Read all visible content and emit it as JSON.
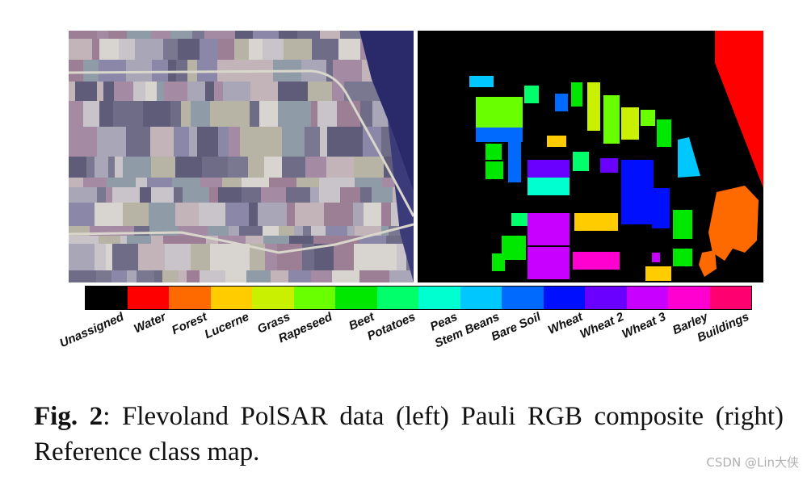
{
  "figure": {
    "left_panel_name": "Pauli RGB composite",
    "right_panel_name": "Reference class map"
  },
  "legend": {
    "classes": [
      {
        "name": "Unassigned",
        "color": "#000000"
      },
      {
        "name": "Water",
        "color": "#ff0000"
      },
      {
        "name": "Forest",
        "color": "#ff6a00"
      },
      {
        "name": "Lucerne",
        "color": "#ffcc00"
      },
      {
        "name": "Grass",
        "color": "#c8f000"
      },
      {
        "name": "Rapeseed",
        "color": "#6aff00"
      },
      {
        "name": "Beet",
        "color": "#00e800"
      },
      {
        "name": "Potatoes",
        "color": "#00ff6a"
      },
      {
        "name": "Peas",
        "color": "#00ffd0"
      },
      {
        "name": "Stem Beans",
        "color": "#00c8ff"
      },
      {
        "name": "Bare Soil",
        "color": "#006aff"
      },
      {
        "name": "Wheat",
        "color": "#0010ff"
      },
      {
        "name": "Wheat 2",
        "color": "#6a00ff"
      },
      {
        "name": "Wheat 3",
        "color": "#c800ff"
      },
      {
        "name": "Barley",
        "color": "#ff00d0"
      },
      {
        "name": "Buildings",
        "color": "#ff0070"
      }
    ]
  },
  "caption": {
    "label": "Fig. 2",
    "text": ": Flevoland PolSAR data (left) Pauli RGB composite (right) Reference class map."
  },
  "watermark": "CSDN @Lin大侠"
}
